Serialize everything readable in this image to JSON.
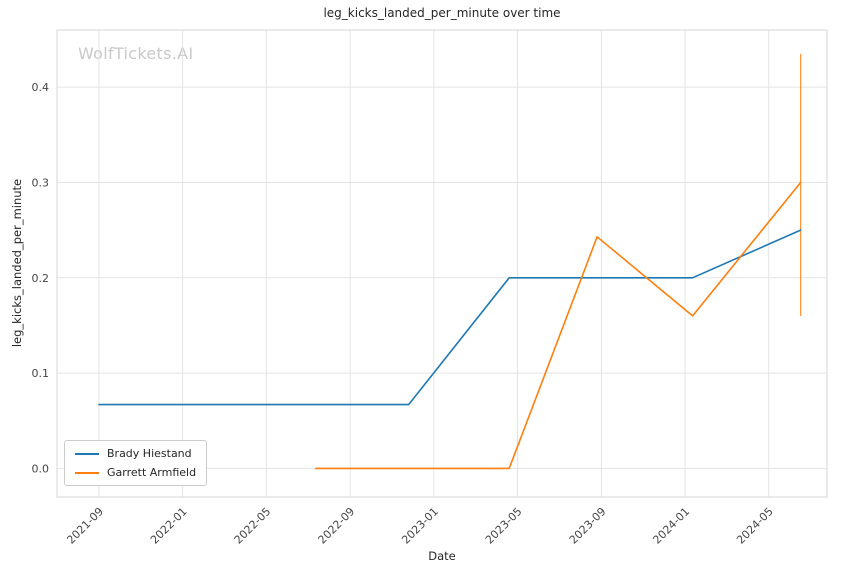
{
  "watermark": {
    "text": "WolfTickets.AI"
  },
  "chart_data": {
    "type": "line",
    "title": "leg_kicks_landed_per_minute over time",
    "xlabel": "Date",
    "ylabel": "leg_kicks_landed_per_minute",
    "grid": true,
    "legend_position": "lower left",
    "xlim": [
      2021.5,
      2024.565
    ],
    "ylim": [
      -0.03,
      0.46
    ],
    "x_ticks": [
      {
        "label": "2021-09",
        "value": 2021.667
      },
      {
        "label": "2022-01",
        "value": 2022.0
      },
      {
        "label": "2022-05",
        "value": 2022.333
      },
      {
        "label": "2022-09",
        "value": 2022.667
      },
      {
        "label": "2023-01",
        "value": 2023.0
      },
      {
        "label": "2023-05",
        "value": 2023.333
      },
      {
        "label": "2023-09",
        "value": 2023.667
      },
      {
        "label": "2024-01",
        "value": 2024.0
      },
      {
        "label": "2024-05",
        "value": 2024.333
      }
    ],
    "y_ticks": [
      {
        "label": "0.0",
        "value": 0.0
      },
      {
        "label": "0.1",
        "value": 0.1
      },
      {
        "label": "0.2",
        "value": 0.2
      },
      {
        "label": "0.3",
        "value": 0.3
      },
      {
        "label": "0.4",
        "value": 0.4
      }
    ],
    "series": [
      {
        "name": "Brady Hiestand",
        "color": "#1f77b4",
        "points": [
          {
            "date": "2021-09",
            "x": 2021.667,
            "y": 0.067
          },
          {
            "date": "2022-11",
            "x": 2022.9,
            "y": 0.067
          },
          {
            "date": "2023-04",
            "x": 2023.3,
            "y": 0.2
          },
          {
            "date": "2024-01",
            "x": 2024.03,
            "y": 0.2
          },
          {
            "date": "2024-06",
            "x": 2024.46,
            "y": 0.25
          }
        ]
      },
      {
        "name": "Garrett Armfield",
        "color": "#ff7f0e",
        "points": [
          {
            "date": "2022-07",
            "x": 2022.53,
            "y": 0.0
          },
          {
            "date": "2023-04",
            "x": 2023.3,
            "y": 0.0
          },
          {
            "date": "2023-08",
            "x": 2023.65,
            "y": 0.243
          },
          {
            "date": "2024-01",
            "x": 2024.03,
            "y": 0.16
          },
          {
            "date": "2024-06",
            "x": 2024.46,
            "y": 0.3
          }
        ],
        "error_bar": {
          "x": 2024.46,
          "y_min": 0.16,
          "y_max": 0.435
        }
      }
    ]
  }
}
